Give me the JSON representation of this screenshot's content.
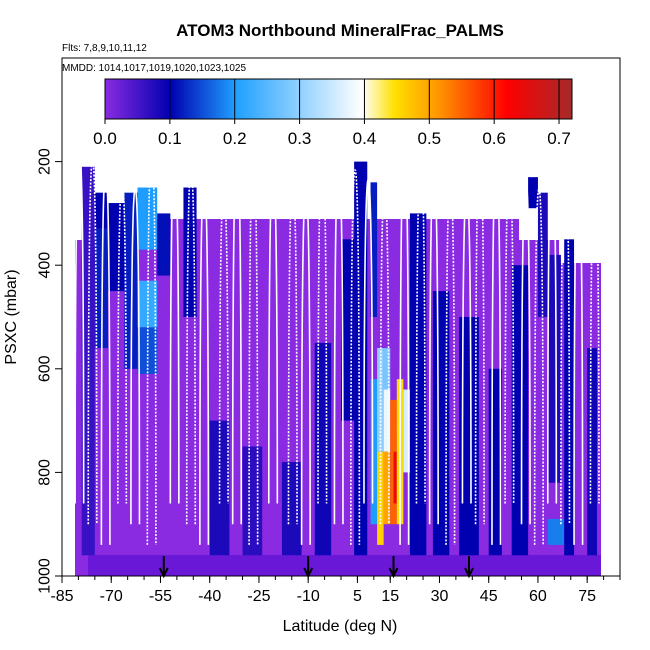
{
  "chart_data": {
    "type": "heatmap",
    "title": "ATOM3 Northbound MineralFrac_PALMS",
    "subtitle_flights": "Flts: 7,8,9,10,11,12",
    "subtitle_dates": "MMDD: 1014,1017,1019,1020,1023,1025",
    "xlabel": "Latitude (deg N)",
    "ylabel": "PSXC (mbar)",
    "xlim": [
      -85,
      85
    ],
    "ylim": [
      1000,
      0
    ],
    "x_ticks": [
      "-85",
      "-70",
      "-55",
      "-40",
      "-25",
      "-10",
      "5",
      "15",
      "30",
      "45",
      "60",
      "75"
    ],
    "y_ticks": [
      "200",
      "400",
      "600",
      "800",
      "1000"
    ],
    "colorbar_ticks": [
      "0.0",
      "0.1",
      "0.2",
      "0.3",
      "0.4",
      "0.5",
      "0.6",
      "0.7"
    ],
    "colorbar_range": [
      0,
      0.72
    ],
    "colorscale": [
      "#8a2be2",
      "#0000b0",
      "#1fa0ff",
      "#ffffff",
      "#ffe000",
      "#ff9000",
      "#ff0000",
      "#a52a2a"
    ],
    "cells": [
      {
        "lat": [
          -79,
          -75
        ],
        "p": [
          210,
          960
        ],
        "v": 0.06
      },
      {
        "lat": [
          -75,
          -71
        ],
        "p": [
          260,
          330
        ],
        "v": 0.1
      },
      {
        "lat": [
          -75,
          -71
        ],
        "p": [
          330,
          560
        ],
        "v": 0.12
      },
      {
        "lat": [
          -71,
          -66
        ],
        "p": [
          280,
          450
        ],
        "v": 0.1
      },
      {
        "lat": [
          -66,
          -62
        ],
        "p": [
          260,
          600
        ],
        "v": 0.12
      },
      {
        "lat": [
          -62,
          -56
        ],
        "p": [
          250,
          370
        ],
        "v": 0.2
      },
      {
        "lat": [
          -62,
          -56
        ],
        "p": [
          430,
          520
        ],
        "v": 0.22
      },
      {
        "lat": [
          -62,
          -56
        ],
        "p": [
          520,
          610
        ],
        "v": 0.15
      },
      {
        "lat": [
          -56,
          -52
        ],
        "p": [
          300,
          420
        ],
        "v": 0.11
      },
      {
        "lat": [
          -48,
          -44
        ],
        "p": [
          250,
          500
        ],
        "v": 0.1
      },
      {
        "lat": [
          -40,
          -34
        ],
        "p": [
          700,
          960
        ],
        "v": 0.08
      },
      {
        "lat": [
          -30,
          -24
        ],
        "p": [
          750,
          960
        ],
        "v": 0.07
      },
      {
        "lat": [
          -18,
          -12
        ],
        "p": [
          780,
          960
        ],
        "v": 0.08
      },
      {
        "lat": [
          -8,
          -3
        ],
        "p": [
          550,
          960
        ],
        "v": 0.09
      },
      {
        "lat": [
          0,
          4
        ],
        "p": [
          350,
          700
        ],
        "v": 0.1
      },
      {
        "lat": [
          4,
          8
        ],
        "p": [
          200,
          960
        ],
        "v": 0.1
      },
      {
        "lat": [
          9,
          11
        ],
        "p": [
          240,
          500
        ],
        "v": 0.12
      },
      {
        "lat": [
          9,
          12
        ],
        "p": [
          620,
          900
        ],
        "v": 0.2
      },
      {
        "lat": [
          11,
          13
        ],
        "p": [
          560,
          760
        ],
        "v": 0.3
      },
      {
        "lat": [
          11,
          13
        ],
        "p": [
          760,
          940
        ],
        "v": 0.46
      },
      {
        "lat": [
          13,
          15
        ],
        "p": [
          560,
          640
        ],
        "v": 0.28
      },
      {
        "lat": [
          13,
          15
        ],
        "p": [
          640,
          760
        ],
        "v": 0.38
      },
      {
        "lat": [
          13,
          15
        ],
        "p": [
          760,
          900
        ],
        "v": 0.5
      },
      {
        "lat": [
          15,
          17
        ],
        "p": [
          660,
          900
        ],
        "v": 0.55
      },
      {
        "lat": [
          16,
          17
        ],
        "p": [
          760,
          860
        ],
        "v": 0.64
      },
      {
        "lat": [
          17,
          19
        ],
        "p": [
          620,
          900
        ],
        "v": 0.45
      },
      {
        "lat": [
          19,
          21
        ],
        "p": [
          640,
          800
        ],
        "v": 0.36
      },
      {
        "lat": [
          21,
          26
        ],
        "p": [
          300,
          960
        ],
        "v": 0.1
      },
      {
        "lat": [
          28,
          33
        ],
        "p": [
          450,
          960
        ],
        "v": 0.1
      },
      {
        "lat": [
          36,
          42
        ],
        "p": [
          500,
          960
        ],
        "v": 0.1
      },
      {
        "lat": [
          45,
          49
        ],
        "p": [
          600,
          960
        ],
        "v": 0.1
      },
      {
        "lat": [
          52,
          57
        ],
        "p": [
          400,
          960
        ],
        "v": 0.1
      },
      {
        "lat": [
          57,
          60
        ],
        "p": [
          230,
          290
        ],
        "v": 0.1
      },
      {
        "lat": [
          60,
          63
        ],
        "p": [
          260,
          500
        ],
        "v": 0.08
      },
      {
        "lat": [
          63,
          67
        ],
        "p": [
          380,
          820
        ],
        "v": 0.08
      },
      {
        "lat": [
          63,
          68
        ],
        "p": [
          890,
          940
        ],
        "v": 0.18
      },
      {
        "lat": [
          68,
          71
        ],
        "p": [
          350,
          960
        ],
        "v": 0.1
      },
      {
        "lat": [
          75,
          78
        ],
        "p": [
          560,
          960
        ],
        "v": 0.09
      }
    ],
    "arrows_lat": [
      -54,
      -10,
      16,
      39
    ]
  }
}
